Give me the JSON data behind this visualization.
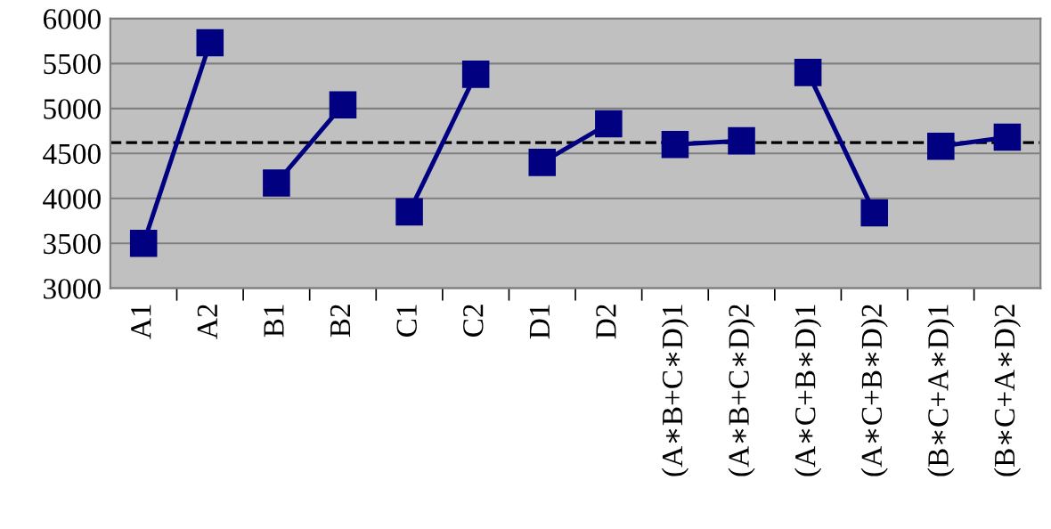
{
  "chart_data": {
    "type": "line",
    "categories": [
      "A1",
      "A2",
      "B1",
      "B2",
      "C1",
      "C2",
      "D1",
      "D2",
      "(A∗B+C∗D)1",
      "(A∗B+C∗D)2",
      "(A∗C+B∗D)1",
      "(A∗C+B∗D)2",
      "(B∗C+A∗D)1",
      "(B∗C+A∗D)2"
    ],
    "series": [
      {
        "color": "#000080",
        "values": [
          3500,
          5730,
          null,
          null,
          null,
          null,
          null,
          null,
          null,
          null,
          null,
          null,
          null,
          null
        ]
      },
      {
        "color": "#000080",
        "values": [
          null,
          null,
          4170,
          5040,
          null,
          null,
          null,
          null,
          null,
          null,
          null,
          null,
          null,
          null
        ]
      },
      {
        "color": "#000080",
        "values": [
          null,
          null,
          null,
          null,
          3850,
          5380,
          null,
          null,
          null,
          null,
          null,
          null,
          null,
          null
        ]
      },
      {
        "color": "#000080",
        "values": [
          null,
          null,
          null,
          null,
          null,
          null,
          4400,
          4830,
          null,
          null,
          null,
          null,
          null,
          null
        ]
      },
      {
        "color": "#000080",
        "values": [
          null,
          null,
          null,
          null,
          null,
          null,
          null,
          null,
          4600,
          4640,
          null,
          null,
          null,
          null
        ]
      },
      {
        "color": "#000080",
        "values": [
          null,
          null,
          null,
          null,
          null,
          null,
          null,
          null,
          null,
          null,
          5400,
          3840,
          null,
          null
        ]
      },
      {
        "color": "#000080",
        "values": [
          null,
          null,
          null,
          null,
          null,
          null,
          null,
          null,
          null,
          null,
          null,
          null,
          4580,
          4680
        ]
      }
    ],
    "ylim": [
      3000,
      6000
    ],
    "yticks": [
      3000,
      3500,
      4000,
      4500,
      5000,
      5500,
      6000
    ],
    "grid": "y",
    "marker": "square",
    "line_style": "solid",
    "legend": false,
    "ref_lines": [
      {
        "axis": "y",
        "value": 4620,
        "color": "#000000",
        "line_style": "dashed"
      }
    ]
  }
}
